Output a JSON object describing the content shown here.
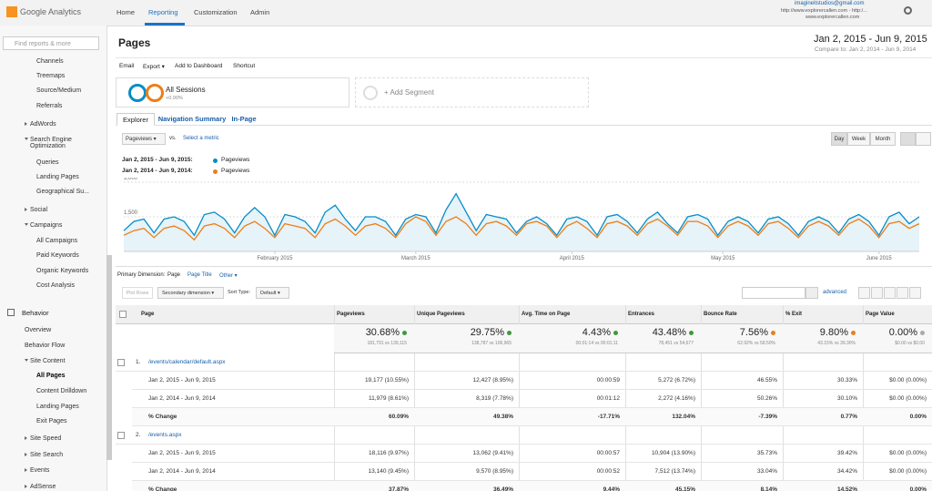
{
  "header": {
    "logo": "Google Analytics",
    "nav": [
      "Home",
      "Reporting",
      "Customization",
      "Admin"
    ],
    "active_nav": 1,
    "account": {
      "email": "imagineitstudios@gmail.com",
      "property": "http://www.explorercallen.com - http:/...",
      "view": "www.explorercallen.com"
    }
  },
  "sidebar": {
    "search": "Find reports & more",
    "items": [
      {
        "label": "Channels",
        "level": 2
      },
      {
        "label": "Treemaps",
        "level": 2
      },
      {
        "label": "Source/Medium",
        "level": 2
      },
      {
        "label": "Referrals",
        "level": 2
      },
      {
        "label": "AdWords",
        "level": 1,
        "arrow": "closed"
      },
      {
        "label": "Search Engine Optimization",
        "level": 1,
        "arrow": "open"
      },
      {
        "label": "Queries",
        "level": 2
      },
      {
        "label": "Landing Pages",
        "level": 2
      },
      {
        "label": "Geographical Su...",
        "level": 2
      },
      {
        "label": "Social",
        "level": 1,
        "arrow": "closed"
      },
      {
        "label": "Campaigns",
        "level": 1,
        "arrow": "open"
      },
      {
        "label": "All Campaigns",
        "level": 2
      },
      {
        "label": "Paid Keywords",
        "level": 2
      },
      {
        "label": "Organic Keywords",
        "level": 2
      },
      {
        "label": "Cost Analysis",
        "level": 2
      },
      {
        "label": "Behavior",
        "level": 0
      },
      {
        "label": "Overview",
        "level": 1
      },
      {
        "label": "Behavior Flow",
        "level": 1
      },
      {
        "label": "Site Content",
        "level": 1,
        "arrow": "open"
      },
      {
        "label": "All Pages",
        "level": 2,
        "selected": true
      },
      {
        "label": "Content Drilldown",
        "level": 2
      },
      {
        "label": "Landing Pages",
        "level": 2
      },
      {
        "label": "Exit Pages",
        "level": 2
      },
      {
        "label": "Site Speed",
        "level": 1,
        "arrow": "closed"
      },
      {
        "label": "Site Search",
        "level": 1,
        "arrow": "closed"
      },
      {
        "label": "Events",
        "level": 1,
        "arrow": "closed"
      },
      {
        "label": "AdSense",
        "level": 1,
        "arrow": "closed"
      }
    ]
  },
  "report": {
    "title": "Pages",
    "date_range": "Jan 2, 2015 - Jun 9, 2015",
    "compare": "Compare to: Jan 2, 2014 - Jun 9, 2014",
    "toolbar": [
      "Email",
      "Export ▾",
      "Add to Dashboard",
      "Shortcut"
    ],
    "segment": {
      "name": "All Sessions",
      "change": "+0.00%",
      "add": "+ Add Segment"
    },
    "tabs": [
      "Explorer",
      "Navigation Summary",
      "In-Page"
    ],
    "controls": {
      "metric": "Pageviews ▾",
      "vs": "vs.",
      "select": "Select a metric",
      "intervals": [
        "Day",
        "Week",
        "Month"
      ]
    }
  },
  "chart_data": {
    "type": "line",
    "xlim": [
      0,
      79
    ],
    "ylim": [
      0,
      3000
    ],
    "yticks": [
      {
        "value": 3000,
        "label": "3,000"
      },
      {
        "value": 1500,
        "label": "1,500"
      }
    ],
    "xticks": [
      {
        "value": 15,
        "label": "February 2015"
      },
      {
        "value": 29,
        "label": "March 2015"
      },
      {
        "value": 44.5,
        "label": "April 2015"
      },
      {
        "value": 59.5,
        "label": "May 2015"
      },
      {
        "value": 75,
        "label": "June 2015"
      }
    ],
    "series": [
      {
        "period": "Jan 2, 2015 - Jun 9, 2015:",
        "name": "Pageviews",
        "color": "#058dc7",
        "values": [
          900,
          1300,
          1400,
          800,
          1400,
          1500,
          1300,
          700,
          1600,
          1700,
          1400,
          800,
          1500,
          1900,
          1500,
          700,
          1600,
          1500,
          1300,
          800,
          1700,
          2000,
          1400,
          900,
          1500,
          1500,
          1300,
          700,
          1400,
          1600,
          1500,
          800,
          1800,
          2500,
          1700,
          900,
          1600,
          1500,
          1400,
          800,
          1300,
          1500,
          1200,
          700,
          1400,
          1500,
          1300,
          700,
          1500,
          1600,
          1300,
          800,
          1400,
          1700,
          1200,
          800,
          1500,
          1600,
          1400,
          700,
          1300,
          1500,
          1300,
          800,
          1400,
          1500,
          1200,
          700,
          1300,
          1500,
          1300,
          800,
          1400,
          1600,
          1300,
          700,
          1500,
          1700,
          1200,
          1500
        ]
      },
      {
        "period": "Jan 2, 2014 - Jun 9, 2014:",
        "name": "Pageviews",
        "color": "#ed7e17",
        "values": [
          700,
          900,
          1000,
          600,
          1000,
          1100,
          900,
          500,
          1100,
          1200,
          1000,
          600,
          1100,
          1300,
          1000,
          600,
          1200,
          1100,
          1000,
          600,
          1200,
          1400,
          1100,
          700,
          1100,
          1200,
          1000,
          600,
          1200,
          1500,
          1300,
          700,
          1300,
          1500,
          1200,
          700,
          1200,
          1300,
          1100,
          700,
          1200,
          1300,
          1100,
          600,
          1100,
          1300,
          1000,
          600,
          1200,
          1300,
          1100,
          700,
          1200,
          1400,
          1100,
          700,
          1300,
          1300,
          1100,
          600,
          1100,
          1300,
          1100,
          700,
          1200,
          1300,
          1000,
          600,
          1100,
          1300,
          1100,
          700,
          1200,
          1400,
          1100,
          600,
          1200,
          1300,
          1000,
          1200
        ]
      }
    ]
  },
  "table": {
    "primary_label": "Primary Dimension:",
    "dimensions": [
      "Page",
      "Page Title",
      "Other ▾"
    ],
    "plot_rows": "Plot Rows",
    "secondary": "Secondary dimension ▾",
    "sort_label": "Sort Type:",
    "sort": "Default ▾",
    "advanced": "advanced",
    "columns": [
      "Page",
      "Pageviews",
      "Unique Pageviews",
      "Avg. Time on Page",
      "Entrances",
      "Bounce Rate",
      "% Exit",
      "Page Value"
    ],
    "summary": [
      {
        "value": "30.68%",
        "compare": "181,791 vs 139,115",
        "color": "#3c9b3c"
      },
      {
        "value": "29.75%",
        "compare": "138,787 vs 106,965",
        "color": "#3c9b3c"
      },
      {
        "value": "4.43%",
        "compare": "00:01:14 vs 00:01:11",
        "color": "#3c9b3c"
      },
      {
        "value": "43.48%",
        "compare": "78,451 vs 54,677",
        "color": "#3c9b3c"
      },
      {
        "value": "7.56%",
        "compare": "62.92% vs 58.50%",
        "color": "#e8801c"
      },
      {
        "value": "9.80%",
        "compare": "43.15% vs 39.30%",
        "color": "#e8801c"
      },
      {
        "value": "0.00%",
        "compare": "$0.00 vs $0.00",
        "color": "#aaaaaa"
      }
    ],
    "rows": [
      {
        "index": "1.",
        "page": "/events/calendar/default.aspx",
        "lines": [
          {
            "label": "Jan 2, 2015 - Jun 9, 2015",
            "cells": [
              "19,177 (10.55%)",
              "12,427 (8.95%)",
              "00:00:59",
              "5,272 (6.72%)",
              "46.55%",
              "30.33%",
              "$0.00 (0.00%)"
            ]
          },
          {
            "label": "Jan 2, 2014 - Jun 9, 2014",
            "cells": [
              "11,979 (8.61%)",
              "8,319 (7.78%)",
              "00:01:12",
              "2,272 (4.16%)",
              "50.26%",
              "30.10%",
              "$0.00 (0.00%)"
            ]
          },
          {
            "label": "% Change",
            "cells": [
              "60.09%",
              "49.38%",
              "-17.71%",
              "132.04%",
              "-7.39%",
              "0.77%",
              "0.00%"
            ]
          }
        ]
      },
      {
        "index": "2.",
        "page": "/events.aspx",
        "lines": [
          {
            "label": "Jan 2, 2015 - Jun 9, 2015",
            "cells": [
              "18,116 (9.97%)",
              "13,062 (9.41%)",
              "00:00:57",
              "10,904 (13.90%)",
              "35.73%",
              "39.42%",
              "$0.00 (0.00%)"
            ]
          },
          {
            "label": "Jan 2, 2014 - Jun 9, 2014",
            "cells": [
              "13,140 (9.45%)",
              "9,570 (8.95%)",
              "00:00:52",
              "7,512 (13.74%)",
              "33.04%",
              "34.42%",
              "$0.00 (0.00%)"
            ]
          },
          {
            "label": "% Change",
            "cells": [
              "37.87%",
              "36.49%",
              "9.44%",
              "45.15%",
              "8.14%",
              "14.52%",
              "0.00%"
            ]
          }
        ]
      }
    ]
  }
}
